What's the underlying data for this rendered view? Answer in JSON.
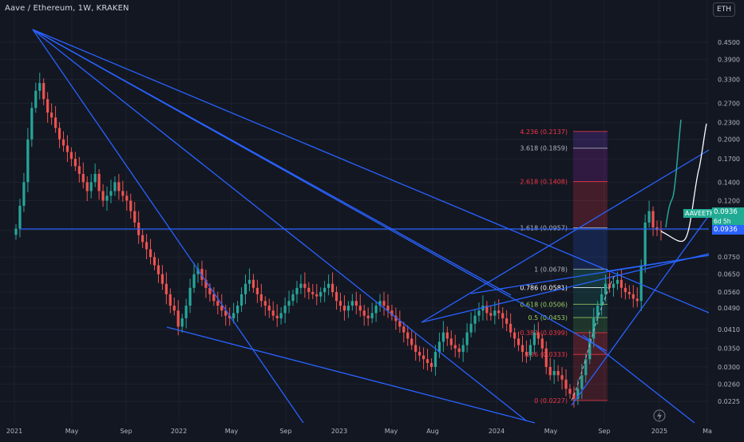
{
  "header": {
    "symbol_title": "Aave / Ethereum, 1W, KRAKEN",
    "currency_button": "ETH"
  },
  "price_badges": {
    "symbol": "AAVEETH",
    "last_price": "0.0936",
    "countdown": "6d 5h",
    "line_price": "0.0936"
  },
  "colors": {
    "background": "#131722",
    "up": "#26a69a",
    "down": "#ef5350",
    "trendline": "#2962ff",
    "projection_teal": "#26a69a",
    "projection_white": "#ffffff",
    "fib_red": "#f23645",
    "fib_text": "#b2b5be",
    "fib_teal": "#22ab94"
  },
  "chart_data": {
    "type": "candlestick",
    "scale": "log",
    "ylim": [
      0.0215,
      0.49
    ],
    "y_ticks": [
      "0.4500",
      "0.3900",
      "0.3300",
      "0.2700",
      "0.2300",
      "0.2000",
      "0.1700",
      "0.1400",
      "0.1200",
      "0.0936",
      "0.0750",
      "0.0650",
      "0.0560",
      "0.0490",
      "0.0410",
      "0.0350",
      "0.0300",
      "0.0260",
      "0.0225"
    ],
    "x_ticks": [
      "2021",
      "May",
      "Sep",
      "2022",
      "May",
      "Sep",
      "2023",
      "May",
      "Aug",
      "2024",
      "May",
      "Sep",
      "2025",
      "Ma"
    ],
    "last_price": 0.0936,
    "fib_levels": [
      {
        "ratio": "0",
        "price": 0.0227,
        "label": "0 (0.0227)"
      },
      {
        "ratio": "0.236",
        "price": 0.0333,
        "label": ".236 (0.0333)"
      },
      {
        "ratio": "0.382",
        "price": 0.0399,
        "label": "0.382 (0.0399)"
      },
      {
        "ratio": "0.5",
        "price": 0.0453,
        "label": "0.5 (0.0453)"
      },
      {
        "ratio": "0.618",
        "price": 0.0506,
        "label": "0.618 (0.0506)"
      },
      {
        "ratio": "0.786",
        "price": 0.0581,
        "label": "0.786 (0.0581)"
      },
      {
        "ratio": "1",
        "price": 0.0678,
        "label": "1 (0.0678)"
      },
      {
        "ratio": "1.618",
        "price": 0.0957,
        "label": "1.618 (0.0957)"
      },
      {
        "ratio": "2.618",
        "price": 0.1408,
        "label": "2.618 (0.1408)"
      },
      {
        "ratio": "3.618",
        "price": 0.1859,
        "label": "3.618 (0.1859)"
      },
      {
        "ratio": "4.236",
        "price": 0.2137,
        "label": "4.236 (0.2137)"
      }
    ],
    "closes": [
      0.095,
      0.115,
      0.14,
      0.2,
      0.26,
      0.3,
      0.32,
      0.28,
      0.25,
      0.24,
      0.22,
      0.2,
      0.19,
      0.18,
      0.17,
      0.16,
      0.15,
      0.14,
      0.13,
      0.14,
      0.15,
      0.13,
      0.12,
      0.125,
      0.13,
      0.14,
      0.13,
      0.125,
      0.12,
      0.11,
      0.1,
      0.09,
      0.085,
      0.08,
      0.075,
      0.07,
      0.065,
      0.06,
      0.055,
      0.05,
      0.048,
      0.042,
      0.045,
      0.05,
      0.058,
      0.065,
      0.068,
      0.062,
      0.058,
      0.055,
      0.052,
      0.05,
      0.048,
      0.046,
      0.045,
      0.047,
      0.05,
      0.055,
      0.06,
      0.062,
      0.058,
      0.055,
      0.052,
      0.05,
      0.048,
      0.046,
      0.045,
      0.047,
      0.05,
      0.052,
      0.055,
      0.058,
      0.06,
      0.058,
      0.056,
      0.055,
      0.054,
      0.056,
      0.058,
      0.06,
      0.056,
      0.052,
      0.05,
      0.048,
      0.05,
      0.052,
      0.05,
      0.048,
      0.046,
      0.045,
      0.047,
      0.05,
      0.052,
      0.05,
      0.048,
      0.046,
      0.044,
      0.042,
      0.04,
      0.038,
      0.036,
      0.034,
      0.033,
      0.032,
      0.031,
      0.03,
      0.034,
      0.037,
      0.04,
      0.038,
      0.036,
      0.035,
      0.034,
      0.036,
      0.04,
      0.043,
      0.046,
      0.048,
      0.05,
      0.047,
      0.046,
      0.048,
      0.047,
      0.045,
      0.043,
      0.04,
      0.038,
      0.036,
      0.034,
      0.033,
      0.036,
      0.04,
      0.038,
      0.035,
      0.03,
      0.028,
      0.029,
      0.028,
      0.027,
      0.025,
      0.024,
      0.023,
      0.025,
      0.028,
      0.032,
      0.038,
      0.045,
      0.05,
      0.055,
      0.06,
      0.058,
      0.06,
      0.062,
      0.058,
      0.056,
      0.055,
      0.053,
      0.052,
      0.07,
      0.1,
      0.11,
      0.096,
      0.094,
      0.0936
    ]
  }
}
